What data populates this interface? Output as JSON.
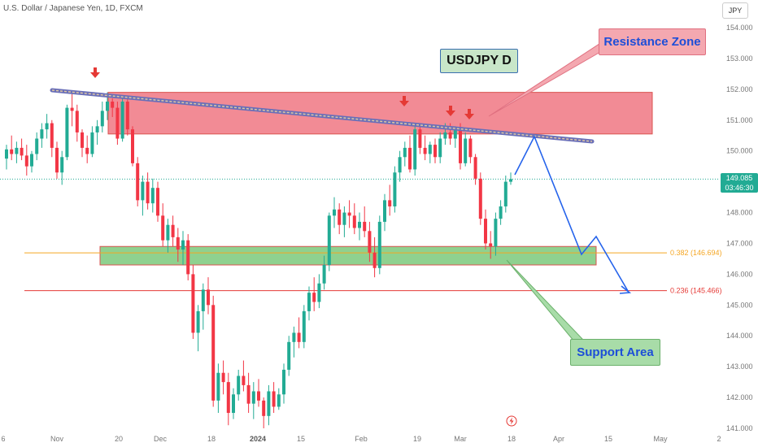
{
  "header": {
    "title": "U.S. Dollar / Japanese Yen, 1D, FXCM"
  },
  "currency_label": "JPY",
  "price_tag": {
    "price": "149.085",
    "countdown": "03:46:30"
  },
  "annotations": {
    "title": "USDJPY D",
    "resistance": "Resistance Zone",
    "support": "Support Area"
  },
  "fib_levels": [
    {
      "label": "0.382 (146.694)",
      "value": 146.694,
      "color": "#f5a623"
    },
    {
      "label": "0.236 (145.466)",
      "value": 145.466,
      "color": "#e53935"
    }
  ],
  "colors": {
    "up": "#22ab94",
    "down": "#f23645",
    "resistance_fill": "#f28b95",
    "support_fill": "#8fd18f",
    "projection": "#2563eb"
  },
  "chart_data": {
    "type": "candlestick",
    "symbol": "USDJPY",
    "timeframe": "1D",
    "y_range": [
      141,
      154
    ],
    "y_ticks": [
      "154.000",
      "153.000",
      "152.000",
      "151.000",
      "150.000",
      "149.000",
      "148.000",
      "147.000",
      "146.000",
      "145.000",
      "144.000",
      "143.000",
      "142.000",
      "141.000"
    ],
    "x_ticks": [
      "6",
      "Nov",
      "20",
      "Dec",
      "18",
      "2024",
      "15",
      "Feb",
      "19",
      "Mar",
      "18",
      "Apr",
      "15",
      "May",
      "2"
    ],
    "x_ticks_bold": [
      "2024"
    ],
    "last_price": 149.085,
    "resistance_zone": [
      150.55,
      151.9
    ],
    "support_zone": [
      146.3,
      146.9
    ],
    "candles": [
      [
        149.75,
        150.2,
        149.4,
        150.05
      ],
      [
        150.05,
        150.5,
        149.7,
        149.9
      ],
      [
        149.9,
        150.3,
        149.6,
        150.1
      ],
      [
        150.1,
        150.4,
        149.7,
        149.85
      ],
      [
        149.85,
        150.2,
        149.2,
        149.5
      ],
      [
        149.5,
        150.0,
        149.3,
        149.9
      ],
      [
        149.9,
        150.6,
        149.7,
        150.4
      ],
      [
        150.4,
        150.9,
        150.1,
        150.7
      ],
      [
        150.7,
        151.2,
        150.4,
        150.9
      ],
      [
        150.9,
        151.0,
        149.8,
        150.1
      ],
      [
        150.1,
        150.3,
        149.1,
        149.3
      ],
      [
        149.3,
        150.0,
        148.9,
        149.8
      ],
      [
        149.8,
        151.5,
        149.7,
        151.4
      ],
      [
        151.4,
        151.9,
        150.8,
        151.3
      ],
      [
        151.3,
        151.5,
        150.3,
        150.6
      ],
      [
        150.6,
        150.7,
        149.8,
        150.1
      ],
      [
        150.1,
        150.5,
        149.6,
        149.9
      ],
      [
        149.9,
        150.8,
        149.8,
        150.6
      ],
      [
        150.6,
        151.0,
        150.2,
        150.8
      ],
      [
        150.8,
        151.6,
        150.6,
        151.3
      ],
      [
        151.3,
        151.9,
        151.0,
        151.6
      ],
      [
        151.6,
        151.7,
        151.1,
        151.4
      ],
      [
        151.4,
        151.6,
        150.2,
        150.4
      ],
      [
        150.4,
        151.8,
        150.3,
        151.6
      ],
      [
        151.6,
        151.7,
        150.5,
        150.7
      ],
      [
        150.7,
        150.8,
        149.5,
        149.6
      ],
      [
        149.6,
        149.8,
        148.2,
        148.4
      ],
      [
        148.4,
        149.2,
        147.9,
        149.0
      ],
      [
        149.0,
        149.3,
        148.1,
        148.3
      ],
      [
        148.3,
        149.1,
        148.0,
        148.8
      ],
      [
        148.8,
        149.0,
        147.7,
        147.9
      ],
      [
        147.9,
        148.3,
        146.9,
        147.1
      ],
      [
        147.1,
        147.8,
        146.7,
        147.6
      ],
      [
        147.6,
        147.9,
        146.9,
        147.2
      ],
      [
        147.2,
        147.5,
        146.4,
        146.8
      ],
      [
        146.8,
        147.4,
        146.3,
        147.1
      ],
      [
        147.1,
        147.3,
        145.8,
        146.0
      ],
      [
        146.0,
        146.3,
        143.9,
        144.1
      ],
      [
        144.1,
        145.0,
        143.5,
        144.8
      ],
      [
        144.8,
        145.7,
        144.2,
        145.5
      ],
      [
        145.5,
        145.9,
        144.7,
        145.0
      ],
      [
        145.0,
        145.3,
        141.7,
        141.9
      ],
      [
        141.9,
        143.1,
        141.5,
        142.8
      ],
      [
        142.8,
        143.2,
        142.1,
        142.5
      ],
      [
        142.5,
        142.8,
        141.1,
        141.5
      ],
      [
        141.5,
        142.3,
        141.3,
        142.1
      ],
      [
        142.1,
        142.9,
        141.9,
        142.7
      ],
      [
        142.7,
        143.2,
        142.2,
        142.4
      ],
      [
        142.4,
        142.8,
        141.5,
        141.8
      ],
      [
        141.8,
        142.5,
        141.3,
        142.2
      ],
      [
        142.2,
        142.6,
        141.7,
        141.9
      ],
      [
        141.9,
        142.0,
        141.0,
        141.4
      ],
      [
        141.4,
        142.4,
        141.1,
        142.2
      ],
      [
        142.2,
        142.5,
        141.5,
        141.7
      ],
      [
        141.7,
        142.3,
        141.6,
        142.1
      ],
      [
        142.1,
        143.1,
        141.8,
        142.9
      ],
      [
        142.9,
        144.0,
        142.7,
        143.8
      ],
      [
        143.8,
        144.3,
        143.3,
        144.1
      ],
      [
        144.1,
        144.6,
        143.6,
        143.8
      ],
      [
        143.8,
        145.0,
        143.6,
        144.8
      ],
      [
        144.8,
        145.6,
        144.5,
        145.4
      ],
      [
        145.4,
        145.9,
        144.8,
        145.1
      ],
      [
        145.1,
        146.0,
        144.9,
        145.7
      ],
      [
        145.7,
        146.6,
        145.5,
        146.3
      ],
      [
        146.3,
        148.0,
        146.1,
        147.9
      ],
      [
        147.9,
        148.5,
        147.5,
        148.1
      ],
      [
        148.1,
        148.3,
        147.3,
        147.6
      ],
      [
        147.6,
        148.2,
        147.2,
        148.0
      ],
      [
        148.0,
        148.4,
        147.5,
        147.9
      ],
      [
        147.9,
        148.3,
        147.3,
        147.5
      ],
      [
        147.5,
        148.0,
        147.1,
        147.7
      ],
      [
        147.7,
        148.2,
        147.2,
        147.4
      ],
      [
        147.4,
        147.7,
        146.4,
        146.7
      ],
      [
        146.7,
        147.2,
        145.9,
        146.2
      ],
      [
        146.2,
        147.9,
        146.0,
        147.7
      ],
      [
        147.7,
        148.6,
        147.4,
        148.4
      ],
      [
        148.4,
        148.9,
        147.9,
        148.2
      ],
      [
        148.2,
        149.5,
        148.0,
        149.3
      ],
      [
        149.3,
        150.0,
        149.0,
        149.8
      ],
      [
        149.8,
        150.3,
        149.5,
        150.1
      ],
      [
        150.1,
        150.5,
        149.3,
        149.4
      ],
      [
        149.4,
        150.9,
        149.2,
        150.7
      ],
      [
        150.7,
        150.9,
        149.9,
        150.1
      ],
      [
        150.1,
        150.5,
        149.7,
        149.9
      ],
      [
        149.9,
        150.3,
        149.6,
        150.2
      ],
      [
        150.2,
        150.4,
        149.6,
        149.8
      ],
      [
        149.8,
        150.6,
        149.6,
        150.4
      ],
      [
        150.4,
        150.9,
        150.2,
        150.6
      ],
      [
        150.6,
        150.9,
        150.2,
        150.4
      ],
      [
        150.4,
        150.8,
        150.1,
        150.7
      ],
      [
        150.7,
        150.9,
        149.4,
        149.6
      ],
      [
        149.6,
        150.6,
        149.5,
        150.4
      ],
      [
        150.4,
        150.5,
        149.6,
        149.8
      ],
      [
        149.8,
        149.9,
        148.9,
        149.1
      ],
      [
        149.1,
        149.3,
        147.6,
        147.8
      ],
      [
        147.8,
        148.1,
        146.8,
        147.0
      ],
      [
        147.0,
        147.4,
        146.5,
        146.9
      ],
      [
        146.9,
        148.0,
        146.6,
        147.8
      ],
      [
        147.8,
        148.4,
        147.6,
        148.2
      ],
      [
        148.2,
        149.2,
        148.0,
        149.0
      ],
      [
        149.0,
        149.3,
        148.9,
        149.085
      ]
    ]
  }
}
